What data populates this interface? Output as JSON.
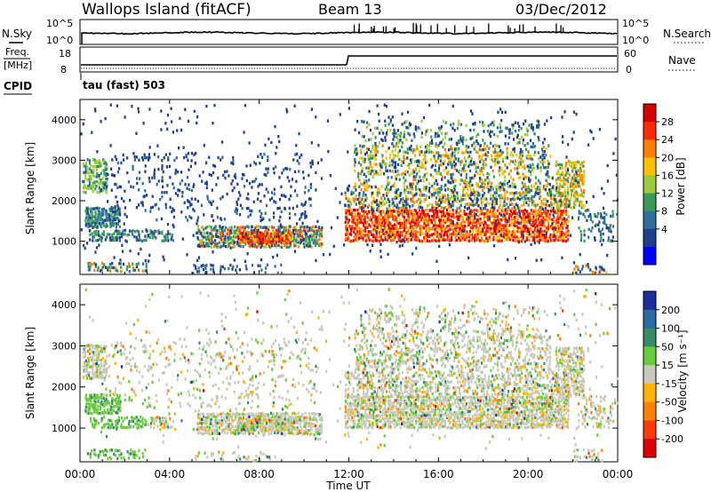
{
  "header": {
    "title_left": "Wallops Island (fitACF)",
    "title_center": "Beam 13",
    "title_right": "03/Dec/2012"
  },
  "noise_panel": {
    "left_label": "N.Sky",
    "left_ticks": [
      "10^5",
      "10^0"
    ],
    "right_ticks": [
      "10^5",
      "10^0"
    ],
    "right_label": "N.Search"
  },
  "freq_panel": {
    "left_label_1": "Freq.",
    "left_label_2": "[MHz]",
    "left_ticks": [
      "18",
      "8"
    ],
    "right_ticks": [
      "60",
      "0"
    ],
    "right_label": "Nave",
    "cpid_label": "CPID",
    "cpid_value": "tau (fast) 503"
  },
  "chart_data": [
    {
      "type": "heatmap",
      "name": "power",
      "ylabel": "Slant Range [km]",
      "yticks": [
        "1000",
        "2000",
        "3000",
        "4000"
      ],
      "ylim": [
        180,
        4500
      ],
      "xlim": [
        0,
        24
      ],
      "colorbar": {
        "label": "Power [dB]",
        "ticks": [
          "28",
          "24",
          "20",
          "16",
          "12",
          "8",
          "4"
        ],
        "colors": [
          "#d40000",
          "#ff2a00",
          "#ff7f00",
          "#ffc000",
          "#9ccc3c",
          "#3a9a55",
          "#2f6f9a",
          "#1f3f8a",
          "#0000ff"
        ]
      }
    },
    {
      "type": "heatmap",
      "name": "velocity",
      "ylabel": "Slant Range [km]",
      "yticks": [
        "1000",
        "2000",
        "3000",
        "4000"
      ],
      "ylim": [
        180,
        4500
      ],
      "xlim": [
        0,
        24
      ],
      "colorbar": {
        "label": "Velocity [m s⁻¹]",
        "ticks": [
          "200",
          "100",
          "50",
          "15",
          "-15",
          "-50",
          "-100",
          "-200"
        ],
        "colors": [
          "#1a2f9a",
          "#2a6aa0",
          "#3a8a6a",
          "#6acc3c",
          "#c8c8bc",
          "#ffb400",
          "#ff7f00",
          "#ff3a00",
          "#dd0000"
        ]
      }
    }
  ],
  "x_axis": {
    "label": "Time UT",
    "ticks": [
      "00:00",
      "04:00",
      "08:00",
      "12:00",
      "16:00",
      "20:00",
      "00:00"
    ]
  }
}
